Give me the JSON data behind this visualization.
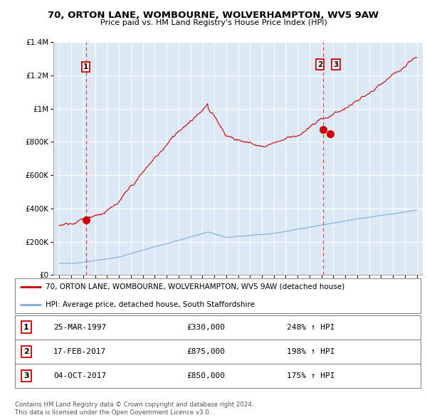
{
  "title": "70, ORTON LANE, WOMBOURNE, WOLVERHAMPTON, WV5 9AW",
  "subtitle": "Price paid vs. HM Land Registry's House Price Index (HPI)",
  "legend_line1": "70, ORTON LANE, WOMBOURNE, WOLVERHAMPTON, WV5 9AW (detached house)",
  "legend_line2": "HPI: Average price, detached house, South Staffordshire",
  "footer1": "Contains HM Land Registry data © Crown copyright and database right 2024.",
  "footer2": "This data is licensed under the Open Government Licence v3.0.",
  "transactions": [
    {
      "label": "1",
      "date": "25-MAR-1997",
      "price": 330000,
      "hpi_pct": "248%",
      "x": 1997.22
    },
    {
      "label": "2",
      "date": "17-FEB-2017",
      "price": 875000,
      "hpi_pct": "198%",
      "x": 2017.12
    },
    {
      "label": "3",
      "date": "04-OCT-2017",
      "price": 850000,
      "hpi_pct": "175%",
      "x": 2017.75
    }
  ],
  "table_rows": [
    [
      "1",
      "25-MAR-1997",
      "£330,000",
      "248% ↑ HPI"
    ],
    [
      "2",
      "17-FEB-2017",
      "£875,000",
      "198% ↑ HPI"
    ],
    [
      "3",
      "04-OCT-2017",
      "£850,000",
      "175% ↑ HPI"
    ]
  ],
  "ylim": [
    0,
    1400000
  ],
  "xlim": [
    1994.5,
    2025.5
  ],
  "bg_color": "#ffffff",
  "plot_bg_color": "#dce8f5",
  "red_line_color": "#cc0000",
  "blue_line_color": "#7aaed4",
  "vline_color": "#dd4444",
  "marker_color": "#cc0000",
  "grid_color": "#ffffff",
  "spine_color": "#aaaaaa"
}
